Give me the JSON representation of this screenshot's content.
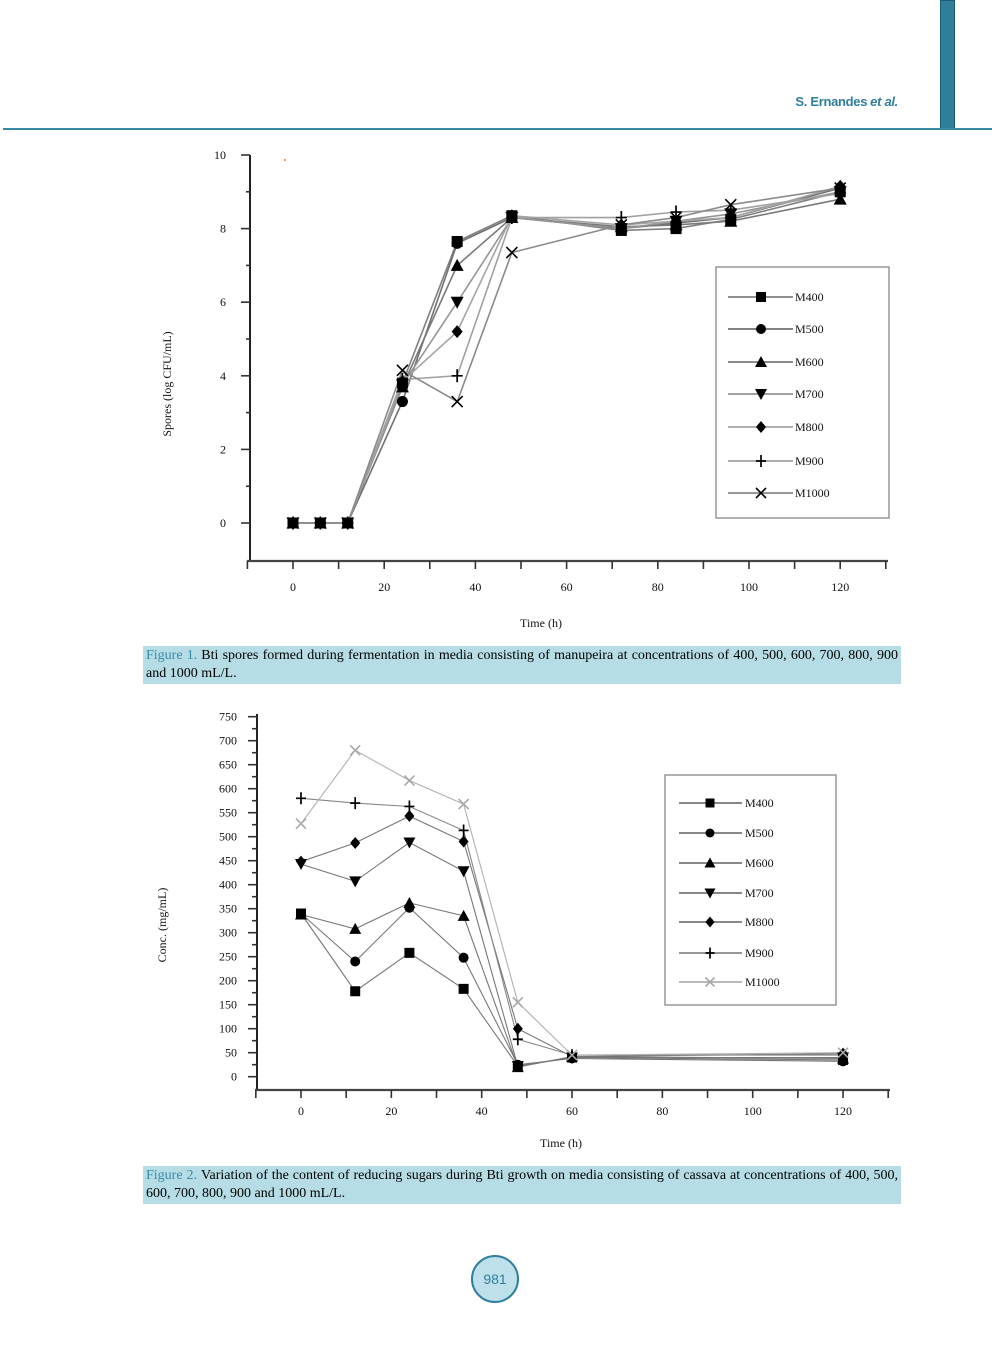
{
  "header": {
    "running_head_name": "S. Ernandes",
    "running_head_etal": "et al."
  },
  "figures": [
    {
      "caption_label": "Figure 1.",
      "caption_text": "Bti spores formed during fermentation in media consisting of manupeira at concentrations of 400, 500, 600, 700, 800, 900 and 1000 mL/L."
    },
    {
      "caption_label": "Figure 2.",
      "caption_text": "Variation of the content of reducing sugars during Bti growth on media consisting of cassava at concentrations of 400, 500, 600, 700, 800, 900 and 1000 mL/L."
    }
  ],
  "page_number": "981",
  "colors": {
    "accent_teal": "#2e7f9e",
    "caption_background": "#b6dde6",
    "page_number_fill": "#bde0ea"
  },
  "chart_data": [
    {
      "type": "line",
      "title": "",
      "xlabel": "Time (h)",
      "ylabel": "Spores (log CFU/mL)",
      "xlim": [
        -10,
        130
      ],
      "ylim": [
        -1,
        10
      ],
      "xticks": [
        0,
        20,
        40,
        60,
        80,
        100,
        120
      ],
      "yticks": [
        0,
        2,
        4,
        6,
        8,
        10
      ],
      "grid": false,
      "legend_position": "inside right, below curves",
      "x": [
        0,
        6,
        12,
        24,
        36,
        48,
        72,
        84,
        96,
        120
      ],
      "series": [
        {
          "name": "M400",
          "marker": "square",
          "values": [
            0,
            0,
            0,
            3.8,
            7.65,
            8.35,
            7.95,
            8.0,
            8.25,
            9.0
          ]
        },
        {
          "name": "M500",
          "marker": "circle",
          "values": [
            0,
            0,
            0,
            3.3,
            7.6,
            8.3,
            8.0,
            8.15,
            8.3,
            9.1
          ]
        },
        {
          "name": "M600",
          "marker": "triangle-up",
          "values": [
            0,
            0,
            0,
            3.7,
            7.0,
            8.3,
            8.05,
            8.1,
            8.2,
            8.8
          ]
        },
        {
          "name": "M700",
          "marker": "triangle-down",
          "values": [
            0,
            0,
            0,
            3.75,
            6.0,
            8.3,
            8.0,
            8.2,
            8.4,
            9.0
          ]
        },
        {
          "name": "M800",
          "marker": "diamond",
          "values": [
            0,
            0,
            0,
            3.85,
            5.2,
            8.35,
            8.1,
            8.2,
            8.3,
            9.15
          ]
        },
        {
          "name": "M900",
          "marker": "plus",
          "values": [
            0,
            0,
            0,
            3.9,
            4.0,
            8.3,
            8.3,
            8.45,
            8.5,
            8.95
          ]
        },
        {
          "name": "M1000",
          "marker": "x",
          "values": [
            0,
            0,
            0,
            4.15,
            3.3,
            7.35,
            8.1,
            8.3,
            8.65,
            9.1
          ]
        }
      ]
    },
    {
      "type": "line",
      "title": "",
      "xlabel": "Time (h)",
      "ylabel": "Conc. (mg/mL)",
      "xlim": [
        -10,
        130
      ],
      "ylim": [
        -25,
        750
      ],
      "xticks": [
        0,
        20,
        40,
        60,
        80,
        100,
        120
      ],
      "yticks": [
        0,
        50,
        100,
        150,
        200,
        250,
        300,
        350,
        400,
        450,
        500,
        550,
        600,
        650,
        700,
        750
      ],
      "grid": false,
      "legend_position": "upper right inside",
      "x": [
        0,
        12,
        24,
        36,
        48,
        60,
        120
      ],
      "series": [
        {
          "name": "M400",
          "marker": "square",
          "values": [
            340,
            178,
            258,
            183,
            22,
            40,
            35
          ]
        },
        {
          "name": "M500",
          "marker": "circle",
          "values": [
            340,
            240,
            352,
            248,
            25,
            38,
            32
          ]
        },
        {
          "name": "M600",
          "marker": "triangle-up",
          "values": [
            338,
            308,
            362,
            335,
            20,
            42,
            38
          ]
        },
        {
          "name": "M700",
          "marker": "triangle-down",
          "values": [
            443,
            407,
            488,
            428,
            22,
            40,
            40
          ]
        },
        {
          "name": "M800",
          "marker": "diamond",
          "values": [
            448,
            487,
            543,
            490,
            100,
            42,
            48
          ]
        },
        {
          "name": "M900",
          "marker": "plus",
          "values": [
            580,
            570,
            563,
            513,
            78,
            45,
            45
          ]
        },
        {
          "name": "M1000",
          "marker": "x",
          "values": [
            527,
            680,
            617,
            568,
            155,
            45,
            50
          ]
        }
      ]
    }
  ]
}
